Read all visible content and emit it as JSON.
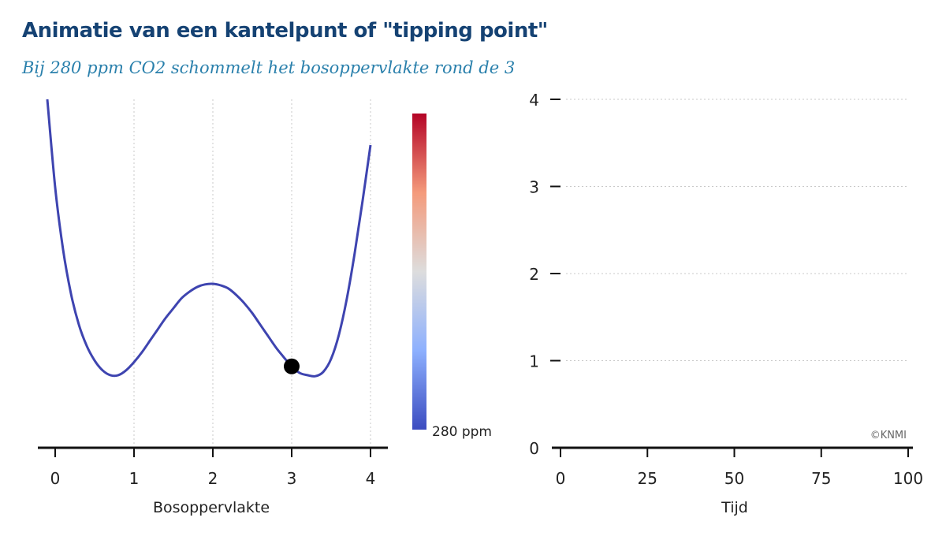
{
  "title": "Animatie van een kantelpunt of  \"tipping point\"",
  "subtitle": "Bij 280 ppm CO2 schommelt het bosoppervlakte rond de 3",
  "credit": "©KNMI",
  "colorbar": {
    "label": "280 ppm",
    "colors": [
      "#3b4cc0",
      "#8db0fe",
      "#dddddd",
      "#f49a7b",
      "#b40426"
    ]
  },
  "curve_color": "#3e44b0",
  "chart_data": [
    {
      "type": "line",
      "name": "potential-landscape",
      "xlabel": "Bosoppervlakte",
      "ylabel": "",
      "xlim": [
        -0.2,
        4.2
      ],
      "ylim": [
        -1,
        9
      ],
      "xticks": [
        0,
        1,
        2,
        3,
        4
      ],
      "xtick_labels": [
        "0",
        "1",
        "2",
        "3",
        "4"
      ],
      "grid_x": true,
      "x": [
        -0.1,
        0.0,
        0.1,
        0.2,
        0.3,
        0.4,
        0.5,
        0.6,
        0.7,
        0.8,
        0.9,
        1.0,
        1.1,
        1.2,
        1.3,
        1.4,
        1.5,
        1.6,
        1.7,
        1.8,
        1.9,
        2.0,
        2.1,
        2.2,
        2.3,
        2.4,
        2.5,
        2.6,
        2.7,
        2.8,
        2.9,
        3.0,
        3.1,
        3.2,
        3.3,
        3.4,
        3.5,
        3.6,
        3.7,
        3.8,
        3.9,
        4.0
      ],
      "y": [
        8.5,
        5.8,
        3.9,
        2.55,
        1.6,
        0.95,
        0.5,
        0.2,
        0.05,
        0.05,
        0.2,
        0.45,
        0.75,
        1.1,
        1.45,
        1.8,
        2.1,
        2.4,
        2.6,
        2.75,
        2.83,
        2.85,
        2.8,
        2.7,
        2.5,
        2.25,
        1.95,
        1.6,
        1.25,
        0.9,
        0.6,
        0.32,
        0.12,
        0.05,
        0.02,
        0.15,
        0.55,
        1.3,
        2.4,
        3.8,
        5.4,
        7.1
      ],
      "marker": {
        "x": 3.0,
        "y": 0.32
      }
    },
    {
      "type": "line",
      "name": "time-series",
      "xlabel": "Tijd",
      "ylabel": "",
      "xlim": [
        0,
        100
      ],
      "ylim": [
        0,
        4
      ],
      "xticks": [
        0,
        25,
        50,
        75,
        100
      ],
      "xtick_labels": [
        "0",
        "25",
        "50",
        "75",
        "100"
      ],
      "yticks": [
        0,
        1,
        2,
        3,
        4
      ],
      "ytick_labels": [
        "0",
        "1",
        "2",
        "3",
        "4"
      ],
      "grid_y": true,
      "series": []
    }
  ]
}
